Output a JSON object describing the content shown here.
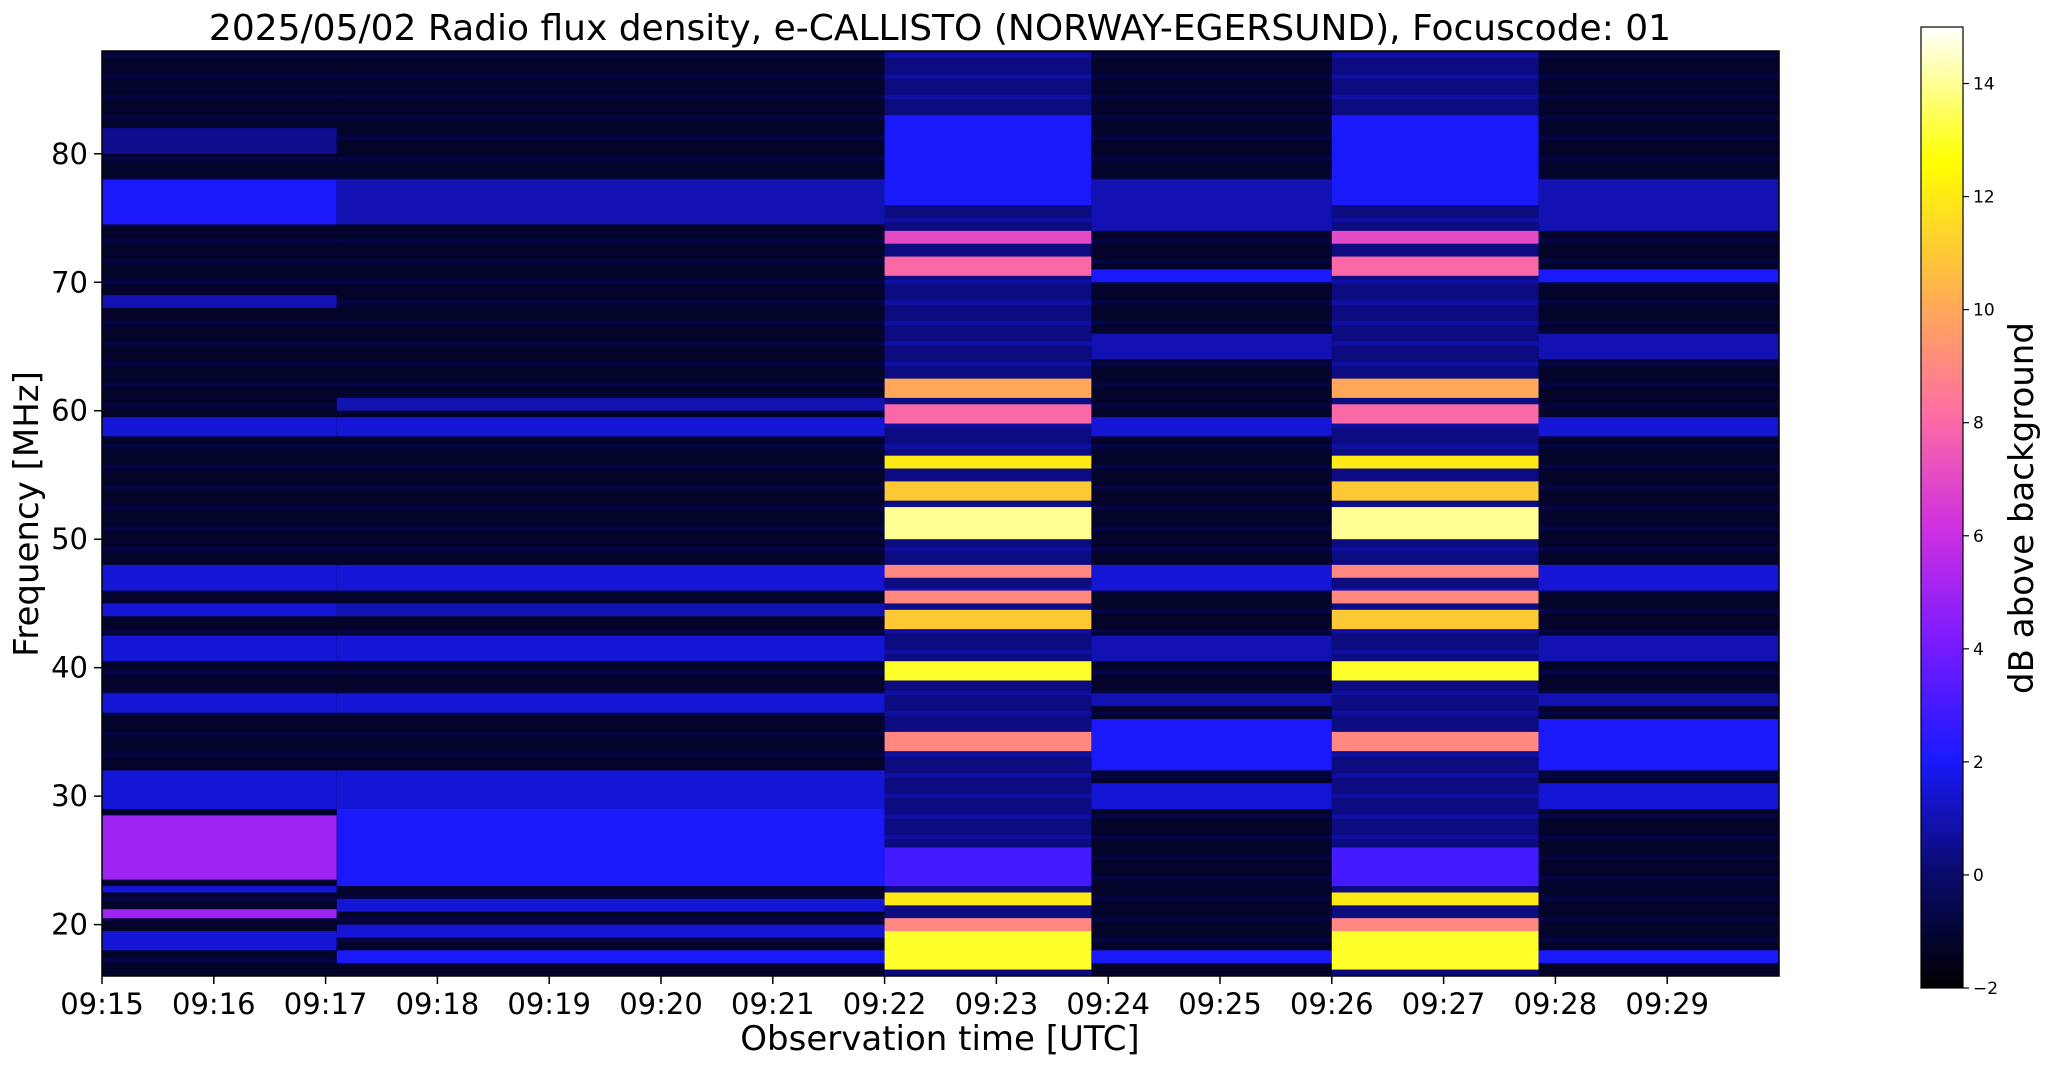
{
  "chart_data": {
    "type": "heatmap",
    "title": "2025/05/02  Radio flux density, e-CALLISTO (NORWAY-EGERSUND), Focuscode: 01",
    "xlabel": "Observation time [UTC]",
    "ylabel": "Frequency [MHz]",
    "x_range_minutes": [
      0,
      15
    ],
    "x_tick_labels": [
      "09:15",
      "09:16",
      "09:17",
      "09:18",
      "09:19",
      "09:20",
      "09:21",
      "09:22",
      "09:23",
      "09:24",
      "09:25",
      "09:26",
      "09:27",
      "09:28",
      "09:29"
    ],
    "x_tick_minutes": [
      0,
      1,
      2,
      3,
      4,
      5,
      6,
      7,
      8,
      9,
      10,
      11,
      12,
      13,
      14
    ],
    "ylim": [
      16,
      88
    ],
    "y_ticks": [
      20,
      30,
      40,
      50,
      60,
      70,
      80
    ],
    "colorbar": {
      "label": "dB above background",
      "range": [
        -2,
        15
      ],
      "ticks": [
        -2,
        0,
        2,
        4,
        6,
        8,
        10,
        12,
        14
      ],
      "colormap": [
        "#000000",
        "#0a0a6e",
        "#1a1aff",
        "#7a1aff",
        "#d030e0",
        "#ff6fa0",
        "#ffb050",
        "#ffff00",
        "#ffffff"
      ]
    },
    "segments": [
      {
        "start_min": 0.0,
        "end_min": 2.1,
        "level": "background",
        "bands_mhz_db": [
          [
            18,
            19.5,
            1.5
          ],
          [
            20.5,
            21.2,
            5
          ],
          [
            22.5,
            23,
            1.5
          ],
          [
            23.5,
            28.5,
            5
          ],
          [
            29,
            32,
            1.5
          ],
          [
            36.5,
            38,
            1.5
          ],
          [
            40.5,
            42.5,
            1.5
          ],
          [
            44,
            45,
            1.5
          ],
          [
            46,
            48,
            1.5
          ],
          [
            58,
            59.5,
            1.5
          ],
          [
            68,
            69,
            1
          ],
          [
            74.5,
            78,
            2
          ],
          [
            80,
            82,
            0.5
          ]
        ]
      },
      {
        "start_min": 2.1,
        "end_min": 7.0,
        "level": "background",
        "bands_mhz_db": [
          [
            17,
            18,
            2
          ],
          [
            19,
            20,
            1.5
          ],
          [
            21,
            22,
            1.5
          ],
          [
            23,
            29,
            2
          ],
          [
            29,
            32,
            1.5
          ],
          [
            36.5,
            38,
            1.5
          ],
          [
            40.5,
            42.5,
            1.5
          ],
          [
            44,
            45,
            1
          ],
          [
            46,
            48,
            1.5
          ],
          [
            58,
            59.5,
            1.5
          ],
          [
            60,
            61,
            1
          ],
          [
            74.5,
            78,
            1
          ]
        ]
      },
      {
        "start_min": 7.0,
        "end_min": 8.85,
        "level": "burst",
        "bands_mhz_db": [
          [
            16.5,
            19.5,
            13
          ],
          [
            19.5,
            20.5,
            9
          ],
          [
            21.5,
            22.5,
            12
          ],
          [
            23,
            26,
            3
          ],
          [
            33.5,
            35,
            9
          ],
          [
            39,
            40.5,
            13
          ],
          [
            43,
            44.5,
            11
          ],
          [
            45,
            46,
            9
          ],
          [
            47,
            48,
            9
          ],
          [
            50,
            52.5,
            14
          ],
          [
            53,
            54.5,
            11
          ],
          [
            55.5,
            56.5,
            12
          ],
          [
            59,
            60.5,
            8
          ],
          [
            61,
            62.5,
            10
          ],
          [
            70.5,
            72,
            8
          ],
          [
            73,
            74,
            7
          ],
          [
            76,
            83,
            2
          ]
        ]
      },
      {
        "start_min": 8.85,
        "end_min": 11.0,
        "level": "background",
        "bands_mhz_db": [
          [
            17,
            18,
            2
          ],
          [
            29,
            31,
            1.5
          ],
          [
            32,
            36,
            2
          ],
          [
            37,
            38,
            1
          ],
          [
            40.5,
            42.5,
            1
          ],
          [
            46,
            48,
            1.5
          ],
          [
            58,
            59.5,
            1.5
          ],
          [
            64,
            66,
            1
          ],
          [
            70,
            71,
            2
          ],
          [
            74,
            78,
            1
          ]
        ]
      },
      {
        "start_min": 11.0,
        "end_min": 12.85,
        "level": "burst",
        "bands_mhz_db": [
          [
            16.5,
            19.5,
            13
          ],
          [
            19.5,
            20.5,
            9
          ],
          [
            21.5,
            22.5,
            12
          ],
          [
            23,
            26,
            3
          ],
          [
            33.5,
            35,
            9
          ],
          [
            39,
            40.5,
            13
          ],
          [
            43,
            44.5,
            11
          ],
          [
            45,
            46,
            9
          ],
          [
            47,
            48,
            9
          ],
          [
            50,
            52.5,
            14
          ],
          [
            53,
            54.5,
            11
          ],
          [
            55.5,
            56.5,
            12
          ],
          [
            59,
            60.5,
            8
          ],
          [
            61,
            62.5,
            10
          ],
          [
            70.5,
            72,
            8
          ],
          [
            73,
            74,
            7
          ],
          [
            76,
            83,
            2
          ]
        ]
      },
      {
        "start_min": 12.85,
        "end_min": 15.0,
        "level": "background",
        "bands_mhz_db": [
          [
            17,
            18,
            2
          ],
          [
            29,
            31,
            1.5
          ],
          [
            32,
            36,
            2
          ],
          [
            37,
            38,
            1
          ],
          [
            40.5,
            42.5,
            1
          ],
          [
            46,
            48,
            1.5
          ],
          [
            58,
            59.5,
            1.5
          ],
          [
            64,
            66,
            1
          ],
          [
            70,
            71,
            2
          ],
          [
            74,
            78,
            1
          ]
        ]
      }
    ]
  }
}
